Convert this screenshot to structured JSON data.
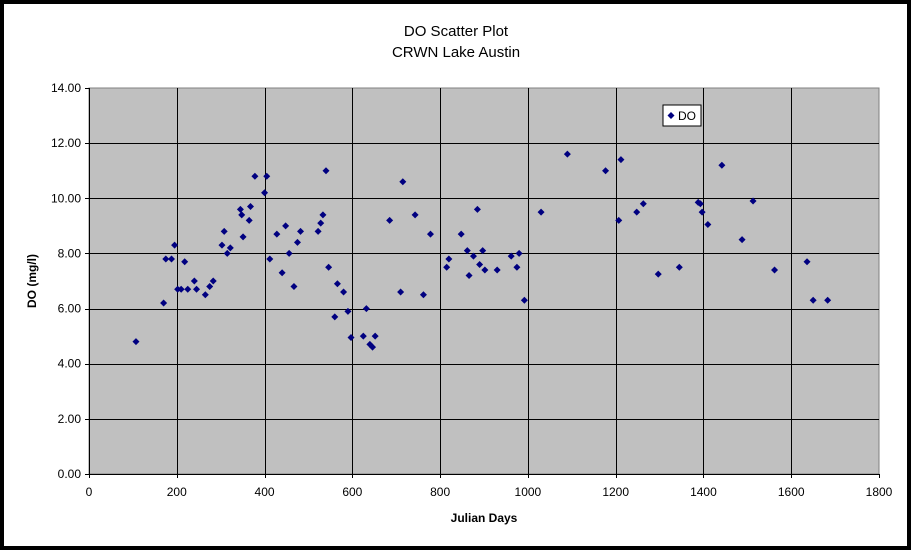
{
  "chart_data": {
    "type": "scatter",
    "title": "DO Scatter Plot",
    "subtitle": "CRWN Lake Austin",
    "xlabel": "Julian Days",
    "ylabel": "DO (mg/l)",
    "xlim": [
      0,
      1800
    ],
    "ylim": [
      0,
      14
    ],
    "x_ticks": [
      "0",
      "200",
      "400",
      "600",
      "800",
      "1000",
      "1200",
      "1400",
      "1600",
      "1800"
    ],
    "y_ticks": [
      "0.00",
      "2.00",
      "4.00",
      "6.00",
      "8.00",
      "10.00",
      "12.00",
      "14.00"
    ],
    "grid": true,
    "legend_position": "top-right",
    "colors": {
      "plot_bg": "#c0c0c0",
      "marker": "#000080",
      "frame": "#000000"
    },
    "series": [
      {
        "name": "DO",
        "points": [
          [
            107,
            4.8
          ],
          [
            170,
            6.2
          ],
          [
            175,
            7.8
          ],
          [
            188,
            7.8
          ],
          [
            195,
            8.3
          ],
          [
            202,
            6.7
          ],
          [
            210,
            6.7
          ],
          [
            218,
            7.7
          ],
          [
            225,
            6.7
          ],
          [
            240,
            7.0
          ],
          [
            245,
            6.7
          ],
          [
            265,
            6.5
          ],
          [
            275,
            6.8
          ],
          [
            283,
            7.0
          ],
          [
            303,
            8.3
          ],
          [
            308,
            8.8
          ],
          [
            315,
            8.0
          ],
          [
            322,
            8.2
          ],
          [
            345,
            9.6
          ],
          [
            348,
            9.4
          ],
          [
            351,
            8.6
          ],
          [
            365,
            9.2
          ],
          [
            368,
            9.7
          ],
          [
            378,
            10.8
          ],
          [
            400,
            10.2
          ],
          [
            405,
            10.8
          ],
          [
            412,
            7.8
          ],
          [
            428,
            8.7
          ],
          [
            440,
            7.3
          ],
          [
            448,
            9.0
          ],
          [
            456,
            8.0
          ],
          [
            467,
            6.8
          ],
          [
            475,
            8.4
          ],
          [
            482,
            8.8
          ],
          [
            522,
            8.8
          ],
          [
            528,
            9.1
          ],
          [
            533,
            9.4
          ],
          [
            540,
            11.0
          ],
          [
            546,
            7.5
          ],
          [
            560,
            5.7
          ],
          [
            566,
            6.9
          ],
          [
            580,
            6.6
          ],
          [
            590,
            5.9
          ],
          [
            597,
            4.95
          ],
          [
            625,
            5.0
          ],
          [
            632,
            6.0
          ],
          [
            640,
            4.7
          ],
          [
            646,
            4.6
          ],
          [
            652,
            5.0
          ],
          [
            685,
            9.2
          ],
          [
            710,
            6.6
          ],
          [
            715,
            10.6
          ],
          [
            743,
            9.4
          ],
          [
            762,
            6.5
          ],
          [
            778,
            8.7
          ],
          [
            815,
            7.5
          ],
          [
            820,
            7.8
          ],
          [
            848,
            8.7
          ],
          [
            862,
            8.1
          ],
          [
            866,
            7.2
          ],
          [
            876,
            7.9
          ],
          [
            885,
            9.6
          ],
          [
            890,
            7.6
          ],
          [
            897,
            8.1
          ],
          [
            902,
            7.4
          ],
          [
            930,
            7.4
          ],
          [
            962,
            7.9
          ],
          [
            975,
            7.5
          ],
          [
            980,
            8.0
          ],
          [
            992,
            6.3
          ],
          [
            1030,
            9.5
          ],
          [
            1090,
            11.6
          ],
          [
            1177,
            11.0
          ],
          [
            1207,
            9.2
          ],
          [
            1212,
            11.4
          ],
          [
            1248,
            9.5
          ],
          [
            1263,
            9.8
          ],
          [
            1297,
            7.25
          ],
          [
            1345,
            7.5
          ],
          [
            1388,
            9.85
          ],
          [
            1393,
            9.8
          ],
          [
            1397,
            9.5
          ],
          [
            1410,
            9.05
          ],
          [
            1442,
            11.2
          ],
          [
            1488,
            8.5
          ],
          [
            1513,
            9.9
          ],
          [
            1562,
            7.4
          ],
          [
            1636,
            7.7
          ],
          [
            1650,
            6.3
          ],
          [
            1683,
            6.3
          ]
        ]
      }
    ]
  }
}
